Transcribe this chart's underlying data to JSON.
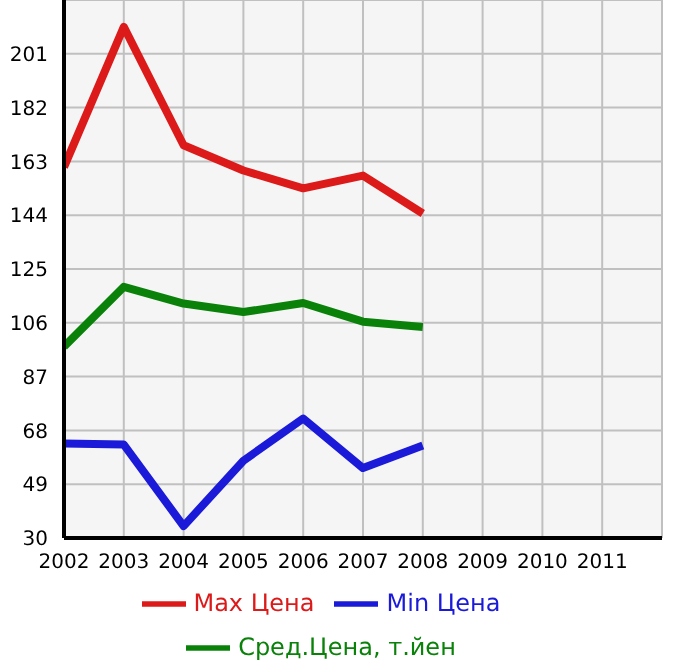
{
  "chart_data": {
    "type": "line",
    "x": [
      2002,
      2003,
      2004,
      2005,
      2006,
      2007,
      2008
    ],
    "series": [
      {
        "name": "Max Цена",
        "color": "#dd1a1a",
        "values": [
          161,
          210.5,
          168.7,
          159.8,
          153.5,
          158,
          144.6
        ]
      },
      {
        "name": "Min Цена",
        "color": "#1a1ad8",
        "values": [
          63.4,
          63,
          34.2,
          57.3,
          72.2,
          54.7,
          62.7
        ]
      },
      {
        "name": "Сред.Цена, т.йен",
        "color": "#0a820a",
        "values": [
          97.6,
          118.7,
          112.8,
          109.8,
          113,
          106.4,
          104.5
        ]
      }
    ],
    "xlim": [
      2002,
      2012
    ],
    "xticks": [
      2002,
      2003,
      2004,
      2005,
      2006,
      2007,
      2008,
      2009,
      2010,
      2011
    ],
    "ylim": [
      30,
      220
    ],
    "yticks": [
      30,
      49,
      68,
      87,
      106,
      125,
      144,
      163,
      182,
      201
    ],
    "grid": true,
    "legend": "bottom",
    "marker": "none",
    "line_style": "solid"
  }
}
